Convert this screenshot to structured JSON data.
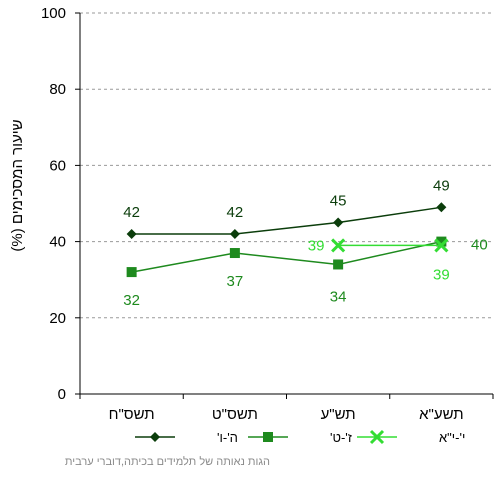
{
  "chart_data": {
    "type": "line",
    "ylabel": "שיעור המסכימים (%)",
    "ylim": [
      0,
      100
    ],
    "yticks": [
      0,
      20,
      40,
      60,
      80,
      100
    ],
    "categories": [
      "תשס\"ח",
      "תשס\"ט",
      "תש\"ע",
      "תשע\"א"
    ],
    "grid": "horizontal-dashed",
    "legend_position": "bottom",
    "series": [
      {
        "name": "ה'-ו'",
        "color": "#0b3d0b",
        "marker": "diamond",
        "values": [
          42,
          42,
          45,
          49
        ],
        "labels": [
          "42",
          "42",
          "45",
          "49"
        ]
      },
      {
        "name": "ז'-ט'",
        "color": "#1e8a1e",
        "marker": "square",
        "values": [
          32,
          37,
          34,
          40
        ],
        "labels": [
          "32",
          "37",
          "34",
          "40"
        ]
      },
      {
        "name": "י'-י\"א",
        "color": "#33dd33",
        "marker": "x",
        "values": [
          null,
          null,
          39,
          39
        ],
        "labels": [
          "",
          "",
          "39",
          "39"
        ]
      }
    ]
  },
  "caption": "הגות נאותה של תלמידים בכיתה,דוברי  ערבית"
}
